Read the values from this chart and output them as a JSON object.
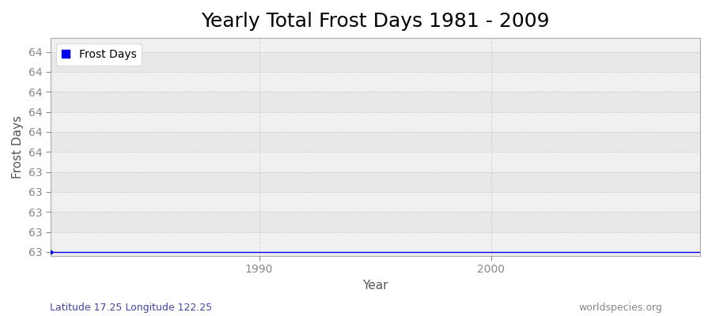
{
  "title": "Yearly Total Frost Days 1981 - 2009",
  "xlabel": "Year",
  "ylabel": "Frost Days",
  "legend_label": "Frost Days",
  "line_color": "#0000ee",
  "plot_bg_color": "#f0f0f0",
  "plot_bg_alt": "#e8e8e8",
  "fig_bg_color": "#ffffff",
  "grid_color": "#cccccc",
  "years": [
    1981,
    1982,
    1983,
    1984,
    1985,
    1986,
    1987,
    1988,
    1989,
    1990,
    1991,
    1992,
    1993,
    1994,
    1995,
    1996,
    1997,
    1998,
    1999,
    2000,
    2001,
    2002,
    2003,
    2004,
    2005,
    2006,
    2007,
    2008,
    2009
  ],
  "frost_days": [
    63,
    63,
    63,
    63,
    63,
    63,
    63,
    63,
    63,
    63,
    63,
    63,
    63,
    63,
    63,
    63,
    63,
    63,
    63,
    63,
    63,
    63,
    63,
    63,
    63,
    63,
    63,
    63,
    63
  ],
  "xlim": [
    1981,
    2009
  ],
  "ylim_min": 63.0,
  "ylim_max": 64.0,
  "ytick_values": [
    63.0,
    63.1,
    63.2,
    63.3,
    63.4,
    63.5,
    63.6,
    63.7,
    63.8,
    63.9,
    64.0
  ],
  "subtitle_left": "Latitude 17.25 Longitude 122.25",
  "subtitle_right": "worldspecies.org",
  "title_fontsize": 18,
  "axis_label_fontsize": 11,
  "tick_fontsize": 10,
  "subtitle_fontsize": 9,
  "tick_color": "#888888",
  "title_color": "#000000",
  "label_color": "#555555",
  "subtitle_left_color": "#4444aa",
  "subtitle_right_color": "#888888"
}
